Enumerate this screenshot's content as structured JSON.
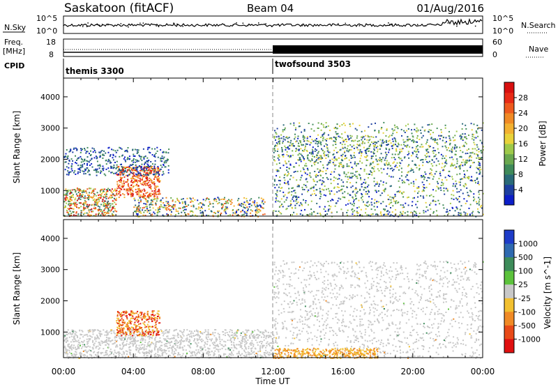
{
  "header": {
    "station": "Saskatoon (fitACF)",
    "beam": "Beam 04",
    "date": "01/Aug/2016"
  },
  "aux": {
    "nsky_label": "N.Sky",
    "nsky_ticks": [
      "10^5",
      "10^0"
    ],
    "nsearch_label": "N.Search",
    "freq_label_1": "Freq.",
    "freq_label_2": "[MHz]",
    "freq_ticks": [
      "18",
      "8"
    ],
    "nave_label": "Nave",
    "nave_ticks": [
      "60",
      "0"
    ],
    "cpid_label": "CPID"
  },
  "cpid_segments": [
    {
      "label": "themis 3300",
      "start_hour": 0
    },
    {
      "label": "twofsound 3503",
      "start_hour": 12
    }
  ],
  "x_axis": {
    "label": "Time UT",
    "ticks": [
      "00:00",
      "04:00",
      "08:00",
      "12:00",
      "16:00",
      "20:00",
      "00:00"
    ],
    "range_hours": [
      0,
      24
    ]
  },
  "y_axis": {
    "label": "Slant Range [km]",
    "ticks": [
      "1000",
      "2000",
      "3000",
      "4000"
    ],
    "range_km": [
      180,
      4600
    ]
  },
  "chart_data": [
    {
      "type": "heatmap",
      "panel": "power",
      "ylabel": "Slant Range [km]",
      "xlabel": "",
      "xlim_hours": [
        0,
        24
      ],
      "ylim_km": [
        180,
        4600
      ],
      "colorbar": {
        "label": "Power [dB]",
        "ticks": [
          "4",
          "8",
          "12",
          "16",
          "20",
          "24",
          "28"
        ],
        "range": [
          0,
          32
        ],
        "colors": [
          "#0c1ec8",
          "#1d3fa0",
          "#2a6a78",
          "#3f8a5a",
          "#6aa84f",
          "#9ec94a",
          "#e8d23a",
          "#f2b131",
          "#f08a25",
          "#ee5a1e",
          "#e82a16",
          "#d8100f"
        ]
      },
      "regions": [
        {
          "t": [
            0.0,
            3.0
          ],
          "r": [
            200,
            1100
          ],
          "level": "mixed_high"
        },
        {
          "t": [
            3.0,
            5.5
          ],
          "r": [
            800,
            1800
          ],
          "level": "high"
        },
        {
          "t": [
            0.0,
            6.0
          ],
          "r": [
            1500,
            2400
          ],
          "level": "low"
        },
        {
          "t": [
            4.0,
            11.5
          ],
          "r": [
            180,
            800
          ],
          "level": "mixed_mid"
        },
        {
          "t": [
            12.0,
            24.0
          ],
          "r": [
            180,
            2800
          ],
          "level": "mixed_low_mid"
        },
        {
          "t": [
            12.0,
            24.0
          ],
          "r": [
            1800,
            3200
          ],
          "level": "mid"
        }
      ]
    },
    {
      "type": "heatmap",
      "panel": "velocity",
      "ylabel": "Slant Range [km]",
      "xlabel": "Time UT",
      "xlim_hours": [
        0,
        24
      ],
      "ylim_km": [
        180,
        4600
      ],
      "colorbar": {
        "label": "Velocity [m s^-1]",
        "ticks": [
          "1000",
          "500",
          "100",
          "25",
          "-25",
          "-100",
          "-500",
          "-1000"
        ],
        "colors": [
          "#1e3cc8",
          "#2f6ab0",
          "#3d8c5a",
          "#5cc23c",
          "#c8c8c8",
          "#f2c030",
          "#f08a25",
          "#e84a18",
          "#e01010"
        ]
      },
      "regions": [
        {
          "t": [
            0.0,
            12.0
          ],
          "r": [
            180,
            1100
          ],
          "level": "near_zero"
        },
        {
          "t": [
            3.0,
            5.5
          ],
          "r": [
            900,
            1700
          ],
          "level": "negative_strong"
        },
        {
          "t": [
            12.0,
            24.0
          ],
          "r": [
            180,
            3300
          ],
          "level": "near_zero"
        },
        {
          "t": [
            12.0,
            18.0
          ],
          "r": [
            180,
            500
          ],
          "level": "negative_weak"
        }
      ]
    }
  ]
}
